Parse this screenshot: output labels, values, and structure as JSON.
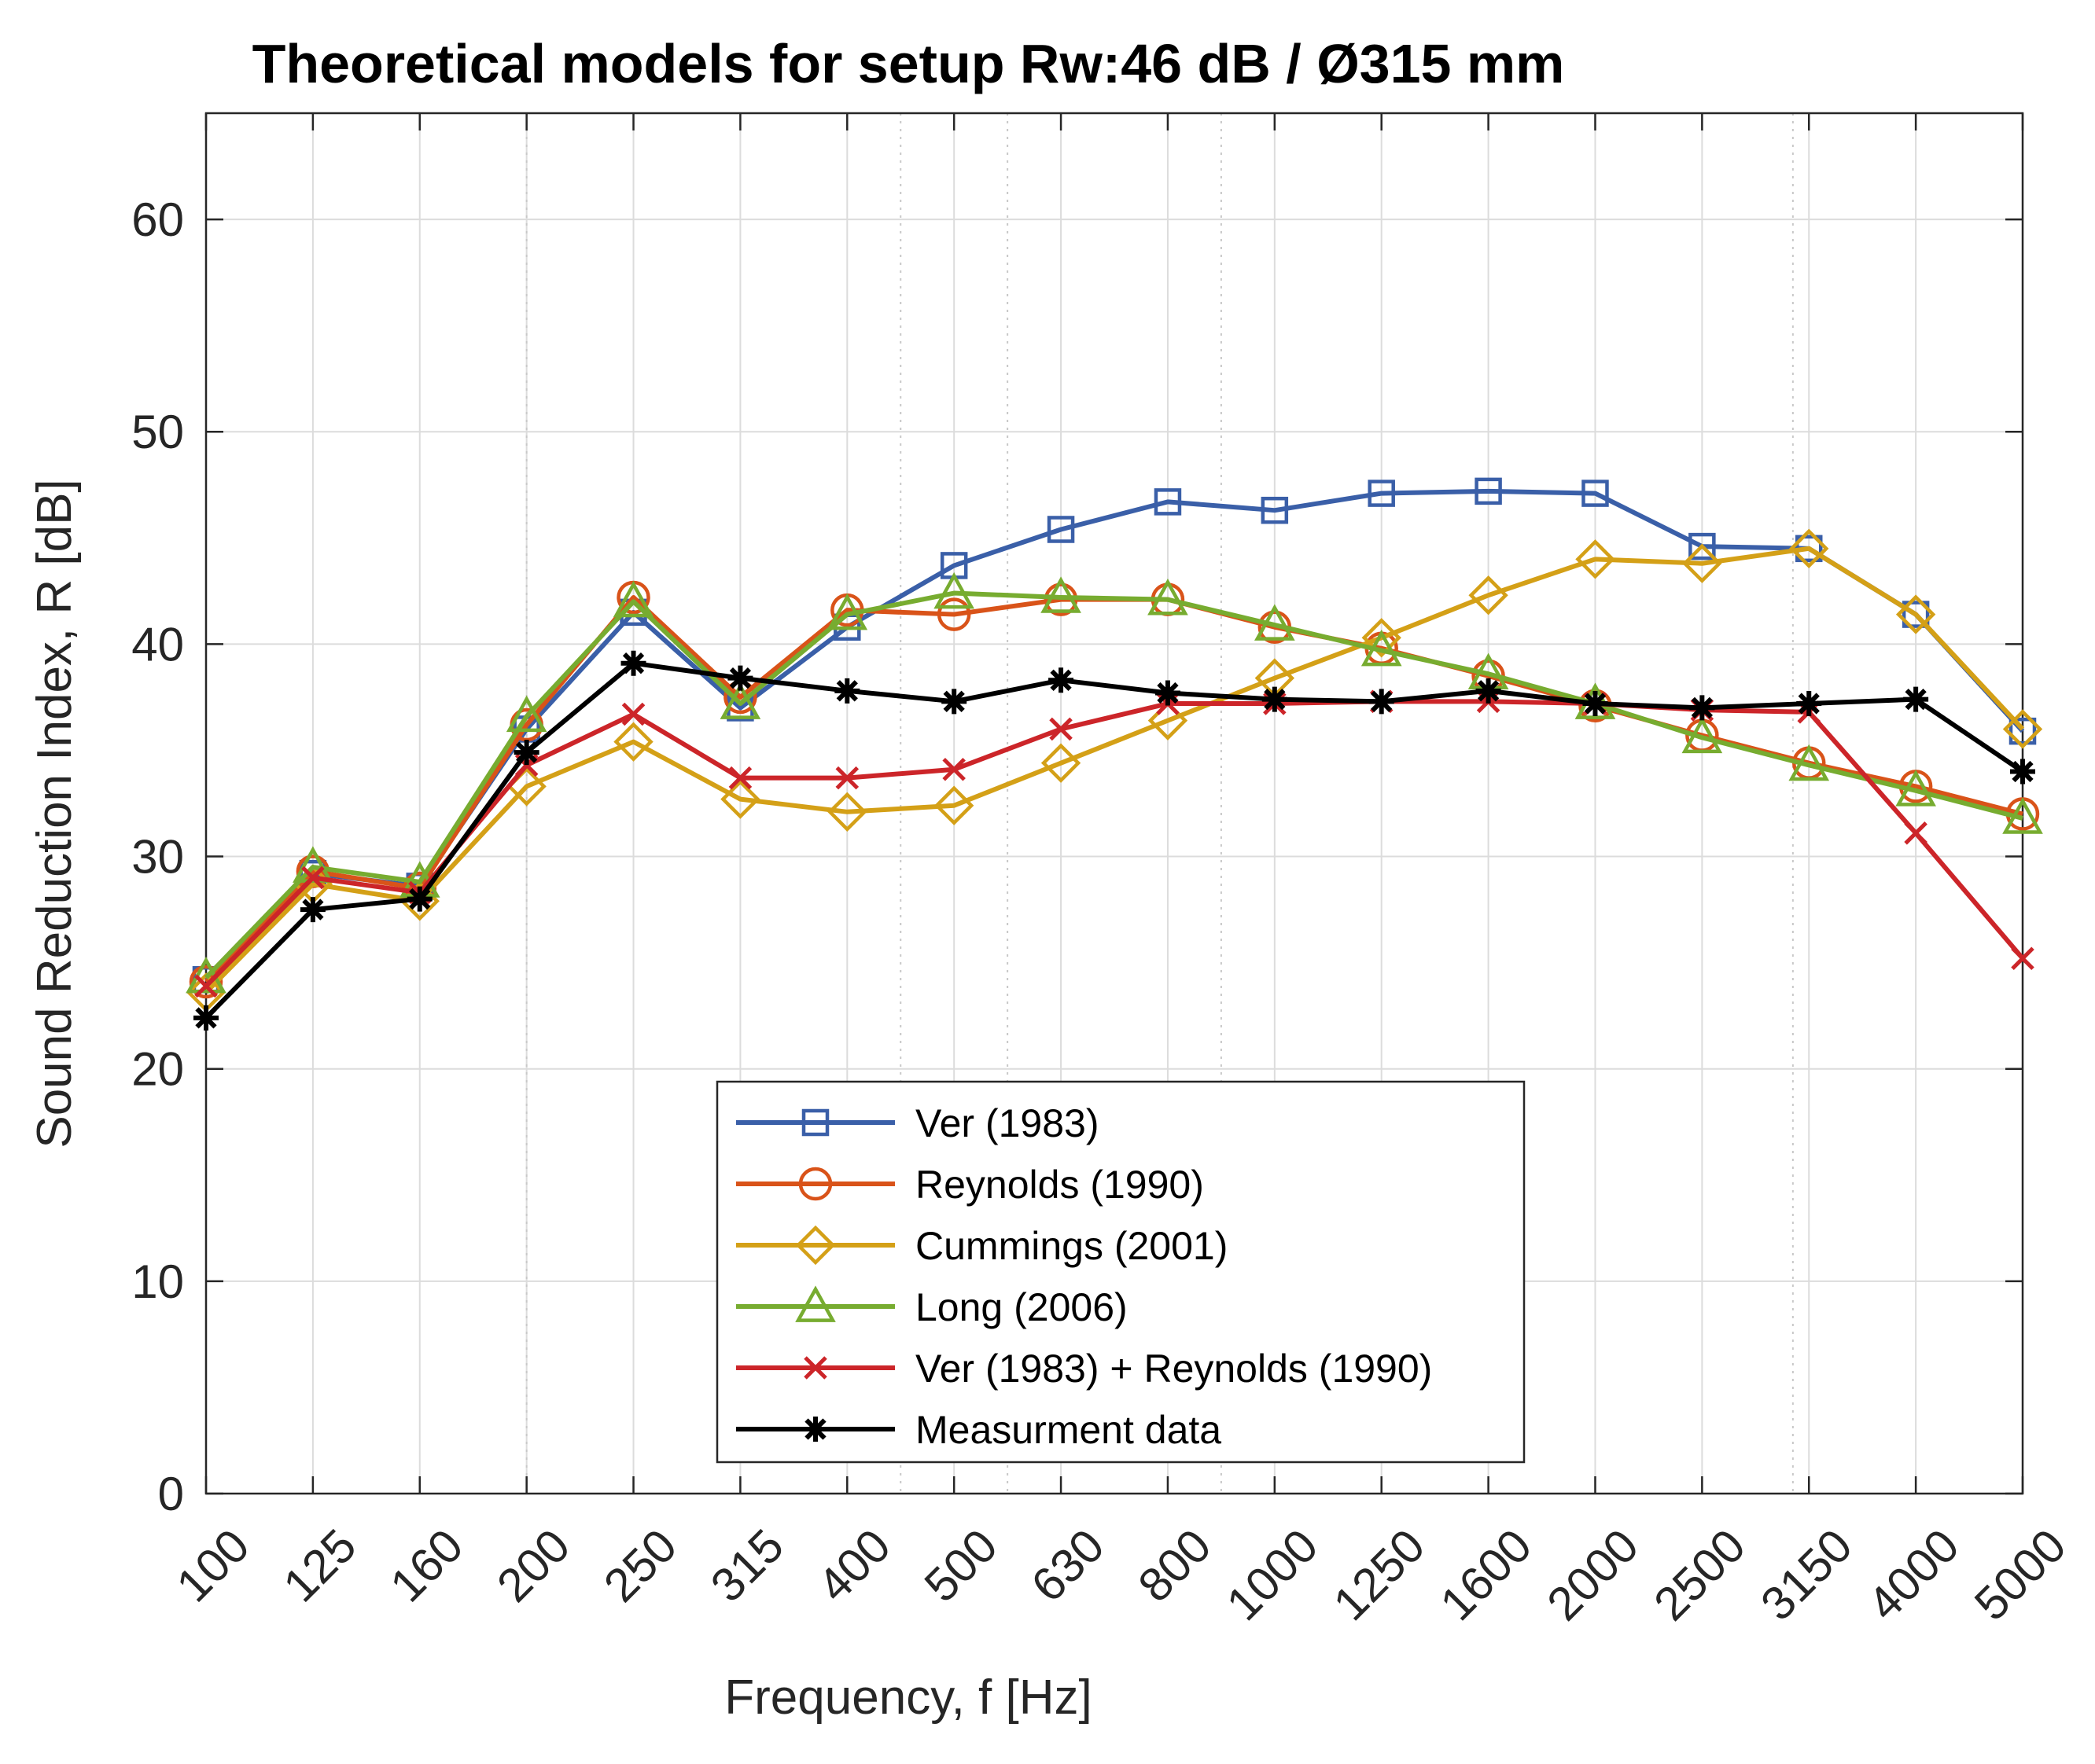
{
  "chart_data": {
    "type": "line",
    "title": "Theoretical models for setup Rw:46 dB / Ø315 mm",
    "xlabel": "Frequency, f [Hz]",
    "ylabel": "Sound Reduction Index, R [dB]",
    "categories": [
      "100",
      "125",
      "160",
      "200",
      "250",
      "315",
      "400",
      "500",
      "630",
      "800",
      "1000",
      "1250",
      "1600",
      "2000",
      "2500",
      "3150",
      "4000",
      "5000"
    ],
    "ylim": [
      0,
      65
    ],
    "yticks": [
      0,
      10,
      20,
      30,
      40,
      50,
      60
    ],
    "grid": true,
    "legend_position": "bottom-center",
    "series": [
      {
        "name": "Ver (1983)",
        "color": "#3A5FA8",
        "marker": "square",
        "values": [
          24.2,
          29.2,
          28.6,
          36.0,
          41.5,
          37.0,
          40.8,
          43.7,
          45.4,
          46.7,
          46.3,
          47.1,
          47.2,
          47.1,
          44.6,
          44.5,
          41.4,
          35.9
        ]
      },
      {
        "name": "Reynolds (1990)",
        "color": "#D95319",
        "marker": "circle",
        "values": [
          24.1,
          29.3,
          28.5,
          36.2,
          42.2,
          37.5,
          41.6,
          41.4,
          42.1,
          42.1,
          40.8,
          39.8,
          38.5,
          37.1,
          35.7,
          34.4,
          33.3,
          32.0
        ]
      },
      {
        "name": "Cummings (2001)",
        "color": "#D4A017",
        "marker": "diamond",
        "values": [
          23.6,
          28.7,
          27.9,
          33.3,
          35.4,
          32.7,
          32.1,
          32.4,
          34.4,
          36.4,
          38.4,
          40.3,
          42.3,
          44.0,
          43.8,
          44.5,
          41.4,
          36.0
        ]
      },
      {
        "name": "Long (2006)",
        "color": "#77AC30",
        "marker": "triangle",
        "values": [
          24.3,
          29.5,
          28.8,
          36.6,
          42.0,
          37.2,
          41.4,
          42.4,
          42.2,
          42.1,
          40.9,
          39.7,
          38.6,
          37.2,
          35.6,
          34.3,
          33.1,
          31.8
        ]
      },
      {
        "name": "Ver (1983) + Reynolds (1990)",
        "color": "#CC2529",
        "marker": "x",
        "values": [
          23.9,
          29.0,
          28.3,
          34.3,
          36.7,
          33.7,
          33.7,
          34.1,
          36.0,
          37.2,
          37.2,
          37.3,
          37.3,
          37.2,
          36.9,
          36.8,
          31.1,
          25.2
        ]
      },
      {
        "name": "Measurment data",
        "color": "#000000",
        "marker": "star",
        "values": [
          22.4,
          27.5,
          28.0,
          34.9,
          39.1,
          38.4,
          37.8,
          37.3,
          38.3,
          37.7,
          37.4,
          37.3,
          37.8,
          37.2,
          37.0,
          37.2,
          37.4,
          34.0
        ]
      }
    ]
  }
}
